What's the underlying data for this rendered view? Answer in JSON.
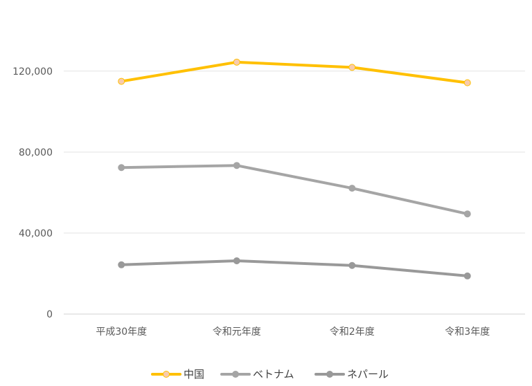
{
  "chart_data": {
    "type": "line",
    "title": "",
    "xlabel": "",
    "ylabel": "",
    "categories": [
      "平成30年度",
      "令和元年度",
      "令和2年度",
      "令和3年度"
    ],
    "ylim": [
      0,
      150000
    ],
    "yticks": [
      0,
      40000,
      80000,
      120000
    ],
    "ytick_labels": [
      "0",
      "40,000",
      "80,000",
      "120,000"
    ],
    "grid": true,
    "legend_position": "bottom",
    "series": [
      {
        "name": "中国",
        "color": "#FFC000",
        "marker_color": "#F8CBAD",
        "values": [
          114950,
          124436,
          121845,
          114255
        ]
      },
      {
        "name": "ベトナム",
        "color": "#A5A5A5",
        "marker_color": "#A5A5A5",
        "values": [
          72354,
          73389,
          62155,
          49469
        ]
      },
      {
        "name": "ネパール",
        "color": "#999999",
        "marker_color": "#999999",
        "values": [
          24331,
          26308,
          24002,
          18825
        ]
      }
    ]
  }
}
